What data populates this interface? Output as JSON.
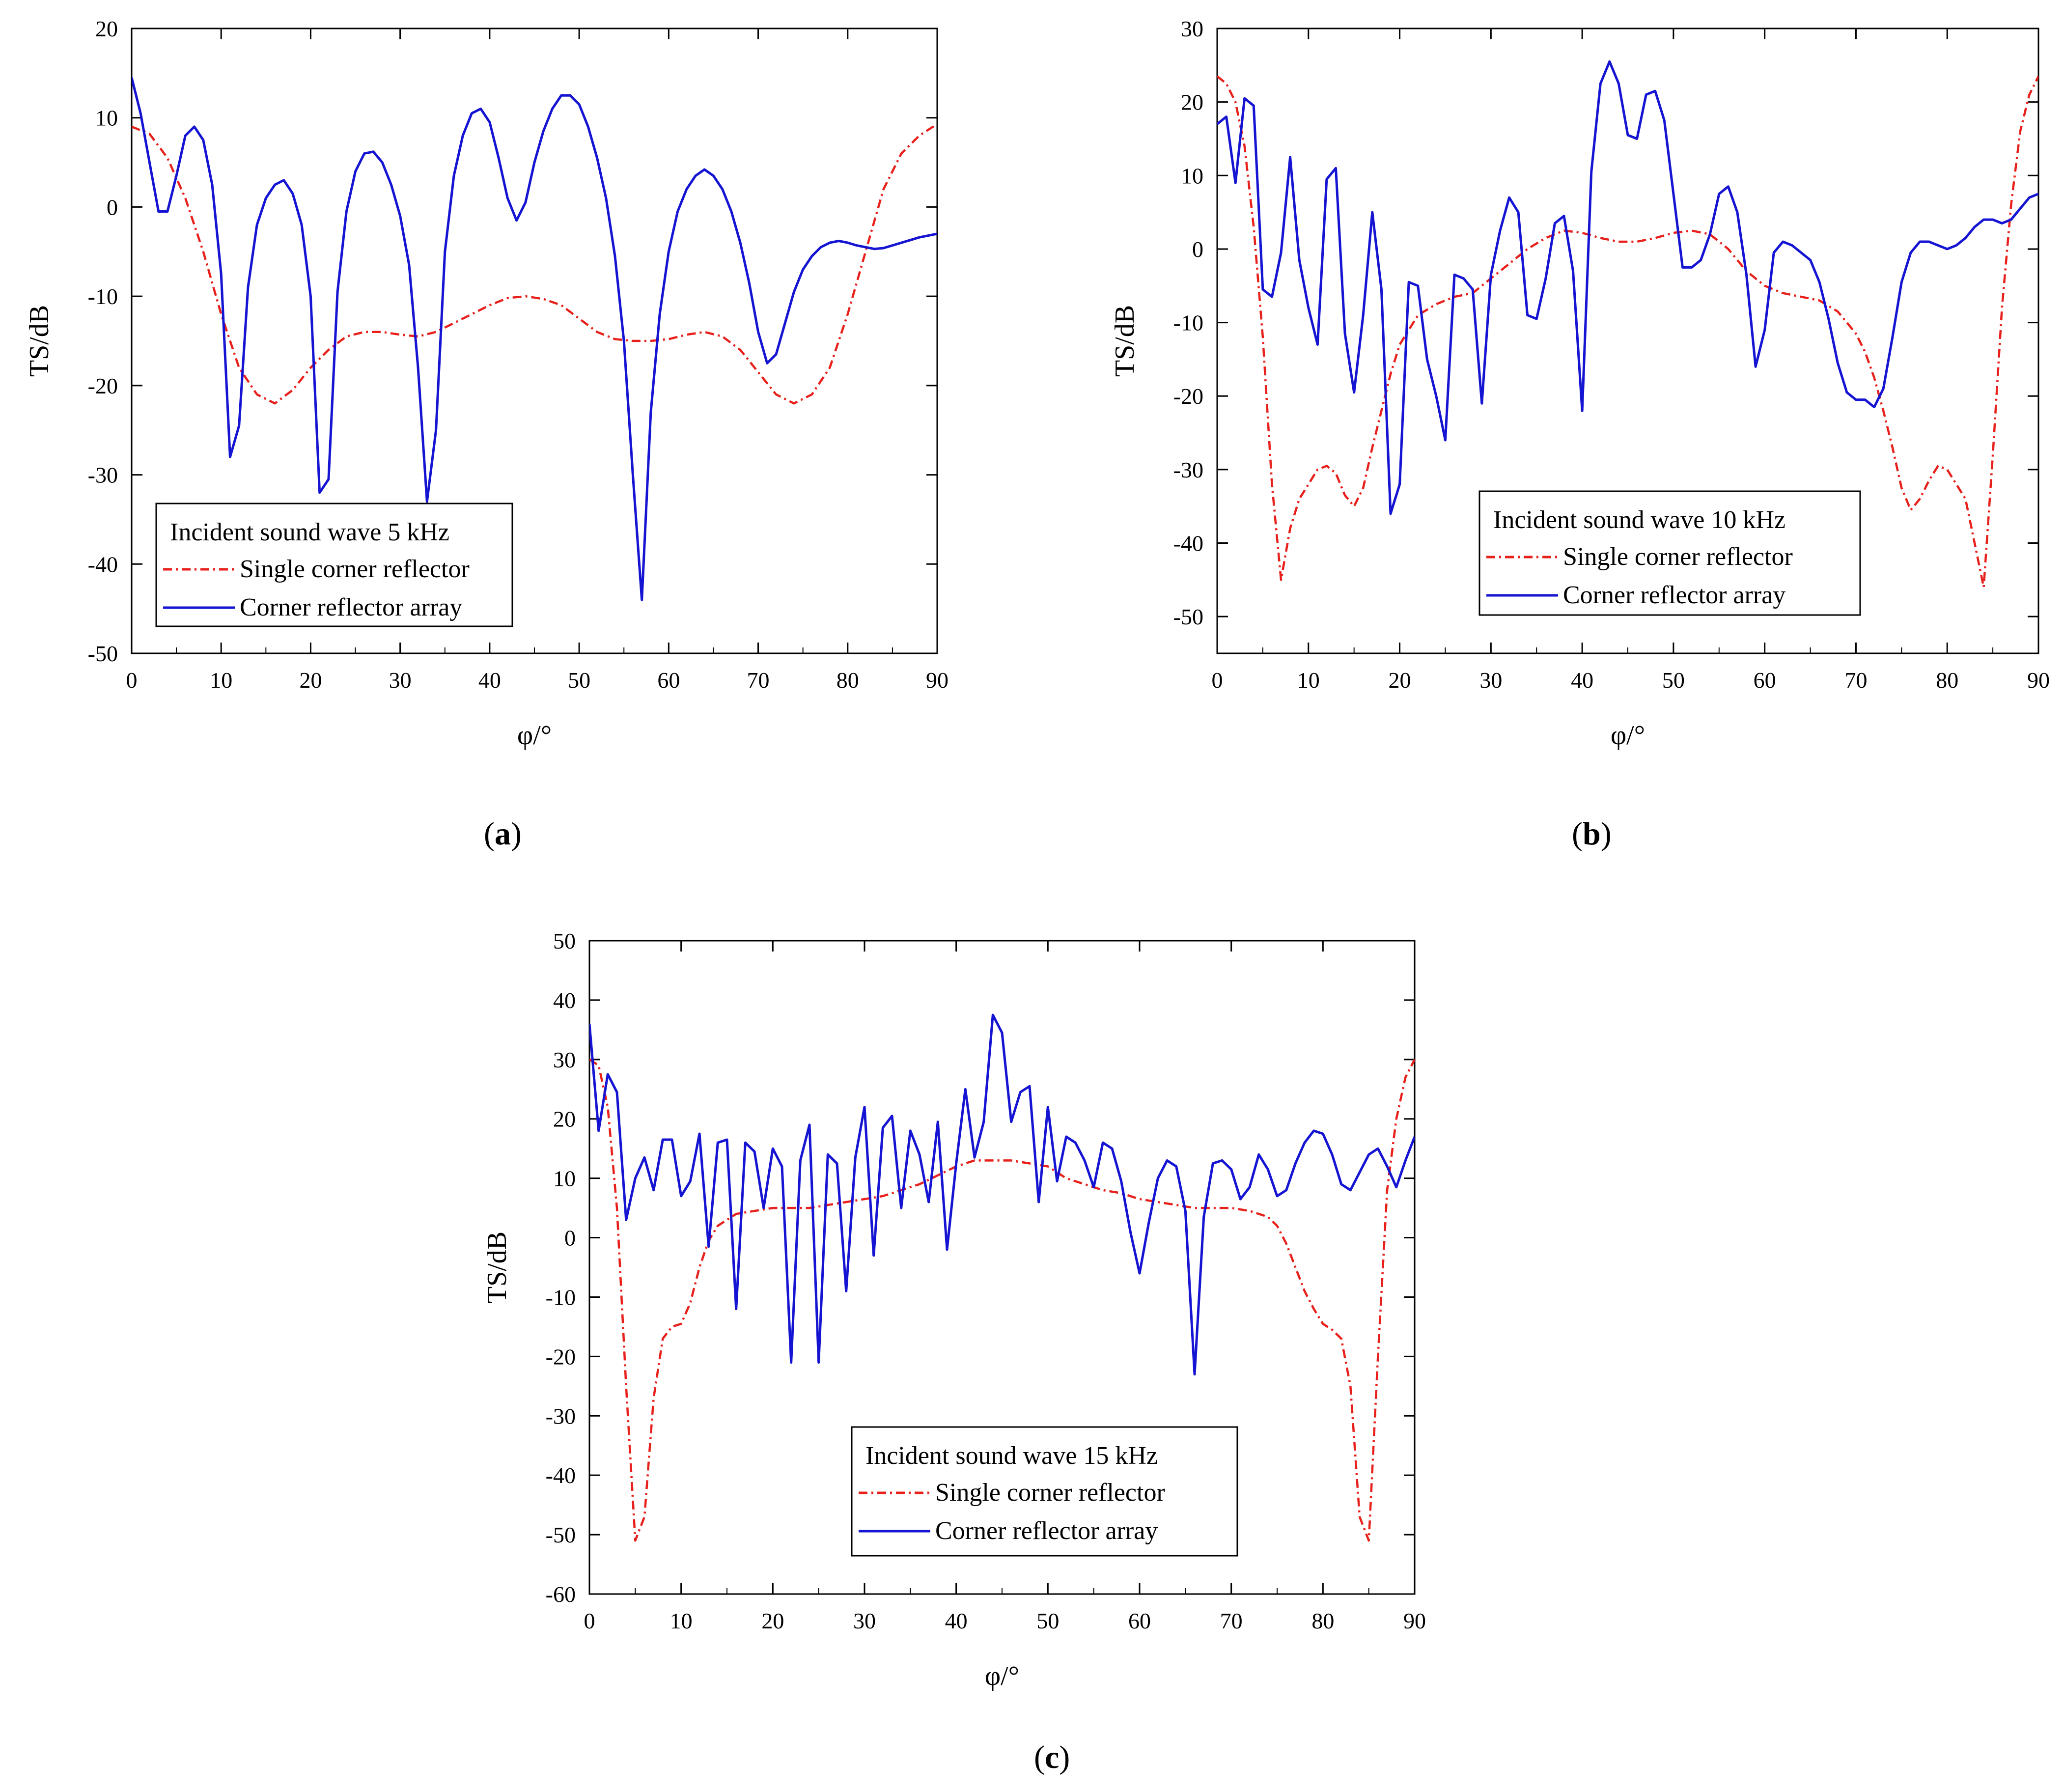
{
  "chart_data": [
    {
      "id": "a",
      "type": "line",
      "caption": "a",
      "xlabel": "φ/°",
      "ylabel": "TS/dB",
      "xlim": [
        0,
        90
      ],
      "ylim": [
        -50,
        20
      ],
      "xticks": [
        0,
        10,
        20,
        30,
        40,
        50,
        60,
        70,
        80,
        90
      ],
      "yticks": [
        20,
        10,
        0,
        -10,
        -20,
        -30,
        -40,
        -50
      ],
      "legend_title": "Incident sound wave 5 kHz",
      "legend_position": "bottom-left",
      "series": [
        {
          "name": "Single corner reflector",
          "color": "#e8201c",
          "dash": "dashdot",
          "x": [
            0,
            2,
            4,
            6,
            8,
            10,
            12,
            14,
            16,
            18,
            20,
            22,
            24,
            26,
            28,
            30,
            32,
            34,
            36,
            38,
            40,
            42,
            44,
            46,
            48,
            50,
            52,
            54,
            56,
            58,
            60,
            62,
            64,
            66,
            68,
            70,
            72,
            74,
            76,
            78,
            80,
            82,
            84,
            86,
            88,
            90
          ],
          "y": [
            9,
            8.2,
            5.5,
            1,
            -5,
            -12,
            -18,
            -21,
            -22,
            -20.5,
            -18,
            -16,
            -14.5,
            -14,
            -14,
            -14.3,
            -14.5,
            -14,
            -13,
            -12,
            -11,
            -10.2,
            -10,
            -10.3,
            -11,
            -12.5,
            -14,
            -14.8,
            -15,
            -15,
            -14.8,
            -14.3,
            -14,
            -14.5,
            -16,
            -18.5,
            -21,
            -22,
            -21,
            -18,
            -12,
            -5,
            2,
            6,
            8,
            9.3
          ]
        },
        {
          "name": "Corner reflector array",
          "color": "#1414d2",
          "dash": "solid",
          "x": [
            0,
            1,
            2,
            3,
            4,
            5,
            6,
            7,
            8,
            9,
            10,
            11,
            12,
            13,
            14,
            15,
            16,
            17,
            18,
            19,
            20,
            21,
            22,
            23,
            24,
            25,
            26,
            27,
            28,
            29,
            30,
            31,
            32,
            33,
            34,
            35,
            36,
            37,
            38,
            39,
            40,
            41,
            42,
            43,
            44,
            45,
            46,
            47,
            48,
            49,
            50,
            51,
            52,
            53,
            54,
            55,
            56,
            57,
            58,
            59,
            60,
            61,
            62,
            63,
            64,
            65,
            66,
            67,
            68,
            69,
            70,
            71,
            72,
            73,
            74,
            75,
            76,
            77,
            78,
            79,
            80,
            81,
            82,
            83,
            84,
            85,
            86,
            87,
            88,
            89,
            90
          ],
          "y": [
            14.5,
            10.5,
            5,
            -0.5,
            -0.5,
            3.5,
            8,
            9,
            7.5,
            2.5,
            -7.5,
            -28,
            -24.5,
            -9,
            -2,
            1,
            2.5,
            3,
            1.5,
            -2,
            -10,
            -32,
            -30.5,
            -9.5,
            -0.5,
            4,
            6,
            6.2,
            5,
            2.5,
            -1,
            -6.5,
            -18,
            -33,
            -25,
            -5,
            3.5,
            8,
            10.5,
            11,
            9.5,
            5.5,
            1,
            -1.5,
            0.5,
            5,
            8.5,
            11,
            12.5,
            12.5,
            11.5,
            9,
            5.5,
            1,
            -5.5,
            -15,
            -30,
            -44,
            -23,
            -12,
            -5,
            -0.5,
            2,
            3.5,
            4.2,
            3.5,
            2,
            -0.5,
            -4,
            -8.5,
            -14,
            -17.5,
            -16.5,
            -13,
            -9.5,
            -7,
            -5.5,
            -4.5,
            -4,
            -3.8,
            -4,
            -4.3,
            -4.5,
            -4.7,
            -4.6,
            -4.3,
            -4,
            -3.7,
            -3.4,
            -3.2,
            -3
          ]
        }
      ]
    },
    {
      "id": "b",
      "type": "line",
      "caption": "b",
      "xlabel": "φ/°",
      "ylabel": "TS/dB",
      "xlim": [
        0,
        90
      ],
      "ylim": [
        -55,
        30
      ],
      "xticks": [
        0,
        10,
        20,
        30,
        40,
        50,
        60,
        70,
        80,
        90
      ],
      "yticks": [
        30,
        20,
        10,
        0,
        -10,
        -20,
        -30,
        -40,
        -50
      ],
      "legend_title": "Incident sound wave 10 kHz",
      "legend_position": "bottom-right",
      "series": [
        {
          "name": "Single corner reflector",
          "color": "#e8201c",
          "dash": "dashdot",
          "x": [
            0,
            1,
            2,
            3,
            4,
            5,
            6,
            7,
            8,
            9,
            10,
            11,
            12,
            13,
            14,
            15,
            16,
            17,
            18,
            19,
            20,
            22,
            24,
            26,
            28,
            30,
            32,
            34,
            36,
            38,
            40,
            42,
            44,
            46,
            48,
            50,
            52,
            54,
            56,
            58,
            60,
            62,
            64,
            66,
            68,
            70,
            71,
            72,
            73,
            74,
            75,
            76,
            77,
            78,
            79,
            80,
            81,
            82,
            83,
            84,
            85,
            86,
            87,
            88,
            89,
            90
          ],
          "y": [
            23.5,
            22.5,
            20,
            14,
            3,
            -12,
            -32,
            -45,
            -38,
            -34,
            -32,
            -30,
            -29.5,
            -30.5,
            -33.5,
            -35,
            -32.5,
            -27,
            -22,
            -17,
            -13,
            -9,
            -7.5,
            -6.5,
            -6,
            -4,
            -2,
            0,
            1.5,
            2.5,
            2.2,
            1.5,
            1,
            1,
            1.5,
            2.2,
            2.5,
            2,
            0,
            -3,
            -5,
            -6,
            -6.5,
            -7,
            -8.5,
            -11.5,
            -14,
            -17.5,
            -22,
            -27,
            -32.5,
            -35.5,
            -34,
            -31.5,
            -29.5,
            -30,
            -32,
            -34,
            -40,
            -46,
            -28,
            -8,
            6,
            16,
            21,
            23.5
          ]
        },
        {
          "name": "Corner reflector array",
          "color": "#1414d2",
          "dash": "solid",
          "x": [
            0,
            1,
            2,
            3,
            4,
            5,
            6,
            7,
            8,
            9,
            10,
            11,
            12,
            13,
            14,
            15,
            16,
            17,
            18,
            19,
            20,
            21,
            22,
            23,
            24,
            25,
            26,
            27,
            28,
            29,
            30,
            31,
            32,
            33,
            34,
            35,
            36,
            37,
            38,
            39,
            40,
            41,
            42,
            43,
            44,
            45,
            46,
            47,
            48,
            49,
            50,
            51,
            52,
            53,
            54,
            55,
            56,
            57,
            58,
            59,
            60,
            61,
            62,
            63,
            64,
            65,
            66,
            67,
            68,
            69,
            70,
            71,
            72,
            73,
            74,
            75,
            76,
            77,
            78,
            79,
            80,
            81,
            82,
            83,
            84,
            85,
            86,
            87,
            88,
            89,
            90
          ],
          "y": [
            17,
            18,
            9,
            20.5,
            19.5,
            -5.5,
            -6.5,
            -0.5,
            12.5,
            -1.5,
            -8,
            -13,
            9.5,
            11,
            -11.5,
            -19.5,
            -9,
            5,
            -5.5,
            -36,
            -32,
            -4.5,
            -5,
            -15,
            -20,
            -26,
            -3.5,
            -4,
            -5.5,
            -21,
            -3.5,
            2.5,
            7,
            5,
            -9,
            -9.5,
            -4,
            3.5,
            4.5,
            -3,
            -22,
            10.5,
            22.5,
            25.5,
            22.5,
            15.5,
            15,
            21,
            21.5,
            17.5,
            7.5,
            -2.5,
            -2.5,
            -1.5,
            2,
            7.5,
            8.5,
            5,
            -3.5,
            -16,
            -11,
            -0.5,
            1,
            0.5,
            -0.5,
            -1.5,
            -4.5,
            -9.5,
            -15.5,
            -19.5,
            -20.5,
            -20.5,
            -21.5,
            -19,
            -12,
            -4.5,
            -0.5,
            1,
            1,
            0.5,
            0,
            0.5,
            1.5,
            3,
            4,
            4,
            3.5,
            4,
            5.5,
            7,
            7.5
          ]
        }
      ]
    },
    {
      "id": "c",
      "type": "line",
      "caption": "c",
      "xlabel": "φ/°",
      "ylabel": "TS/dB",
      "xlim": [
        0,
        90
      ],
      "ylim": [
        -60,
        50
      ],
      "xticks": [
        0,
        10,
        20,
        30,
        40,
        50,
        60,
        70,
        80,
        90
      ],
      "yticks": [
        50,
        40,
        30,
        20,
        10,
        0,
        -10,
        -20,
        -30,
        -40,
        -50,
        -60
      ],
      "legend_title": "Incident sound wave 15 kHz",
      "legend_position": "bottom-center",
      "series": [
        {
          "name": "Single corner reflector",
          "color": "#e8201c",
          "dash": "dashdot",
          "x": [
            0,
            1,
            2,
            3,
            4,
            5,
            6,
            7,
            8,
            9,
            10,
            11,
            12,
            13,
            14,
            16,
            18,
            20,
            22,
            24,
            26,
            28,
            30,
            32,
            34,
            36,
            38,
            40,
            42,
            44,
            46,
            48,
            50,
            52,
            54,
            56,
            58,
            60,
            62,
            64,
            66,
            68,
            70,
            72,
            74,
            75,
            76,
            77,
            78,
            79,
            80,
            81,
            82,
            83,
            84,
            85,
            86,
            87,
            88,
            89,
            90
          ],
          "y": [
            30,
            29,
            22,
            5,
            -25,
            -51,
            -47,
            -27,
            -17,
            -15,
            -14.5,
            -11,
            -5,
            -0.5,
            2,
            4,
            4.5,
            5,
            5,
            5,
            5.5,
            6,
            6.5,
            7,
            8,
            9,
            10.5,
            12,
            13,
            13,
            13,
            12.5,
            12,
            10,
            9,
            8,
            7.5,
            6.5,
            6,
            5.5,
            5,
            5,
            5,
            4.5,
            3.5,
            2,
            -1,
            -5,
            -9,
            -12,
            -14.5,
            -15.5,
            -17,
            -25,
            -47,
            -51,
            -20,
            8,
            20,
            27,
            30
          ]
        },
        {
          "name": "Corner reflector array",
          "color": "#1414d2",
          "dash": "solid",
          "x": [
            0,
            1,
            2,
            3,
            4,
            5,
            6,
            7,
            8,
            9,
            10,
            11,
            12,
            13,
            14,
            15,
            16,
            17,
            18,
            19,
            20,
            21,
            22,
            23,
            24,
            25,
            26,
            27,
            28,
            29,
            30,
            31,
            32,
            33,
            34,
            35,
            36,
            37,
            38,
            39,
            40,
            41,
            42,
            43,
            44,
            45,
            46,
            47,
            48,
            49,
            50,
            51,
            52,
            53,
            54,
            55,
            56,
            57,
            58,
            59,
            60,
            61,
            62,
            63,
            64,
            65,
            66,
            67,
            68,
            69,
            70,
            71,
            72,
            73,
            74,
            75,
            76,
            77,
            78,
            79,
            80,
            81,
            82,
            83,
            84,
            85,
            86,
            87,
            88,
            89,
            90
          ],
          "y": [
            36,
            18,
            27.5,
            24.5,
            3,
            10,
            13.5,
            8,
            16.5,
            16.5,
            7,
            9.5,
            17.5,
            -1.5,
            16,
            16.5,
            -12,
            16,
            14.5,
            5,
            15,
            12,
            -21,
            13,
            19,
            -21,
            14,
            12.5,
            -9,
            13.5,
            22,
            -3,
            18.5,
            20.5,
            5,
            18,
            14,
            6,
            19.5,
            -2,
            12.5,
            25,
            13.5,
            19.5,
            37.5,
            34.5,
            19.5,
            24.5,
            25.5,
            6,
            22,
            9.5,
            17,
            16,
            13,
            8.5,
            16,
            15,
            9.5,
            1,
            -6,
            2.5,
            10,
            13,
            12,
            4.5,
            -23,
            3.5,
            12.5,
            13,
            11.5,
            6.5,
            8.5,
            14,
            11.5,
            7,
            8,
            12.5,
            16,
            18,
            17.5,
            14,
            9,
            8,
            11,
            14,
            15,
            12,
            8.5,
            13,
            17
          ]
        }
      ]
    }
  ]
}
